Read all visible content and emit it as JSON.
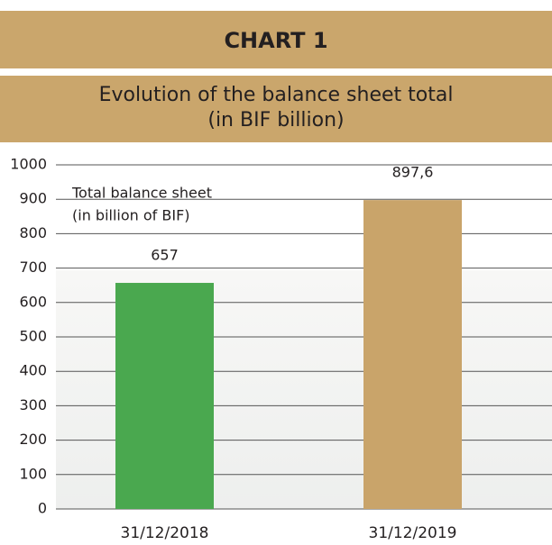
{
  "chart_data": {
    "type": "bar",
    "title": "CHART 1",
    "subtitle": [
      "Evolution of the balance sheet total",
      "(in BIF billion)"
    ],
    "annotation": [
      "Total balance sheet",
      "(in billion of BIF)"
    ],
    "categories": [
      "31/12/2018",
      "31/12/2019"
    ],
    "values": [
      657,
      897.6
    ],
    "value_labels": [
      "657",
      "897,6"
    ],
    "colors": [
      "#4aa84f",
      "#c9a46a"
    ],
    "ylim": [
      0,
      1000
    ],
    "yticks": [
      0,
      100,
      200,
      300,
      400,
      500,
      600,
      700,
      800,
      900,
      1000
    ],
    "grid": true
  }
}
